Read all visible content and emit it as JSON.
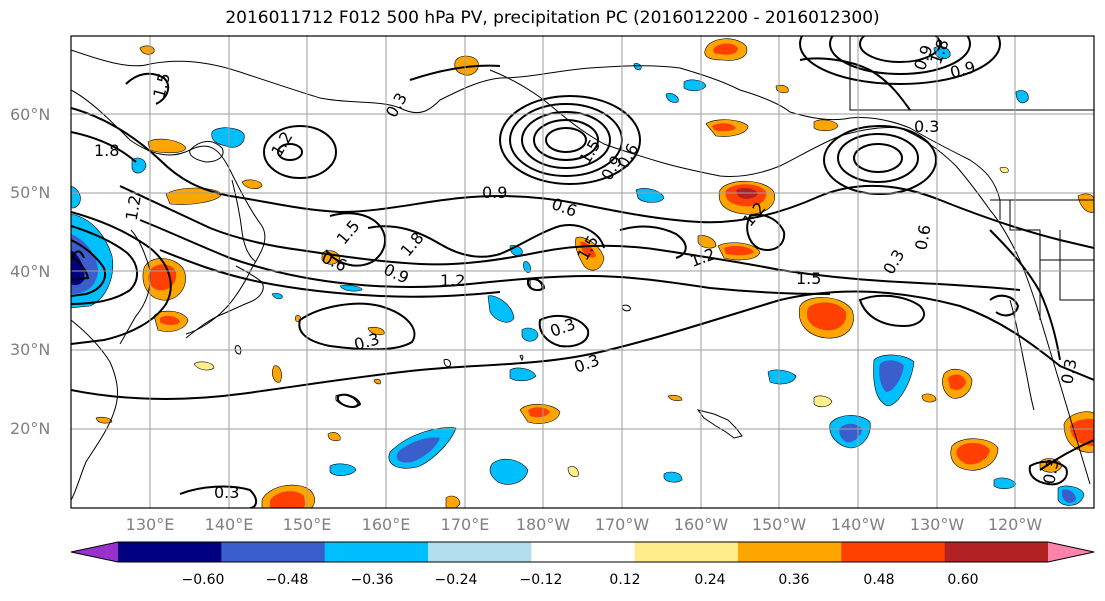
{
  "title": "2016011712 F012 500 hPa PV, precipitation PC (2016012200 - 2016012300)",
  "lat_labels": [
    "60°N",
    "50°N",
    "40°N",
    "30°N",
    "20°N"
  ],
  "lon_labels": [
    "130°E",
    "140°E",
    "150°E",
    "160°E",
    "170°E",
    "180°W",
    "170°W",
    "160°W",
    "150°W",
    "140°W",
    "130°W",
    "120°W"
  ],
  "colorbar": {
    "ticks": [
      "−0.60",
      "−0.48",
      "−0.36",
      "−0.24",
      "−0.12",
      "0.12",
      "0.24",
      "0.36",
      "0.48",
      "0.60"
    ],
    "colors": [
      "#9932cc",
      "#000080",
      "#3a5fcd",
      "#00bfff",
      "#b2dfee",
      "#ffffff",
      "#ffec8b",
      "#ffa500",
      "#ff4000",
      "#b22222",
      "#ff82ab"
    ]
  },
  "contour_labels": [
    "1.5",
    "1.8",
    "1.2",
    "0.3",
    "0.9",
    "0.6",
    "1.5",
    "1.8",
    "0.6",
    "0.9",
    "1.2",
    "0.9",
    "0.6",
    "1.5",
    "1.2",
    "1.5",
    "1.2",
    "0.3",
    "0.3",
    "0.3",
    "0.3",
    "0.3",
    "1.2",
    "1.5",
    "0.3",
    "0.6",
    "0.9",
    "0.3",
    "0.9",
    "1.8",
    "0.3"
  ]
}
